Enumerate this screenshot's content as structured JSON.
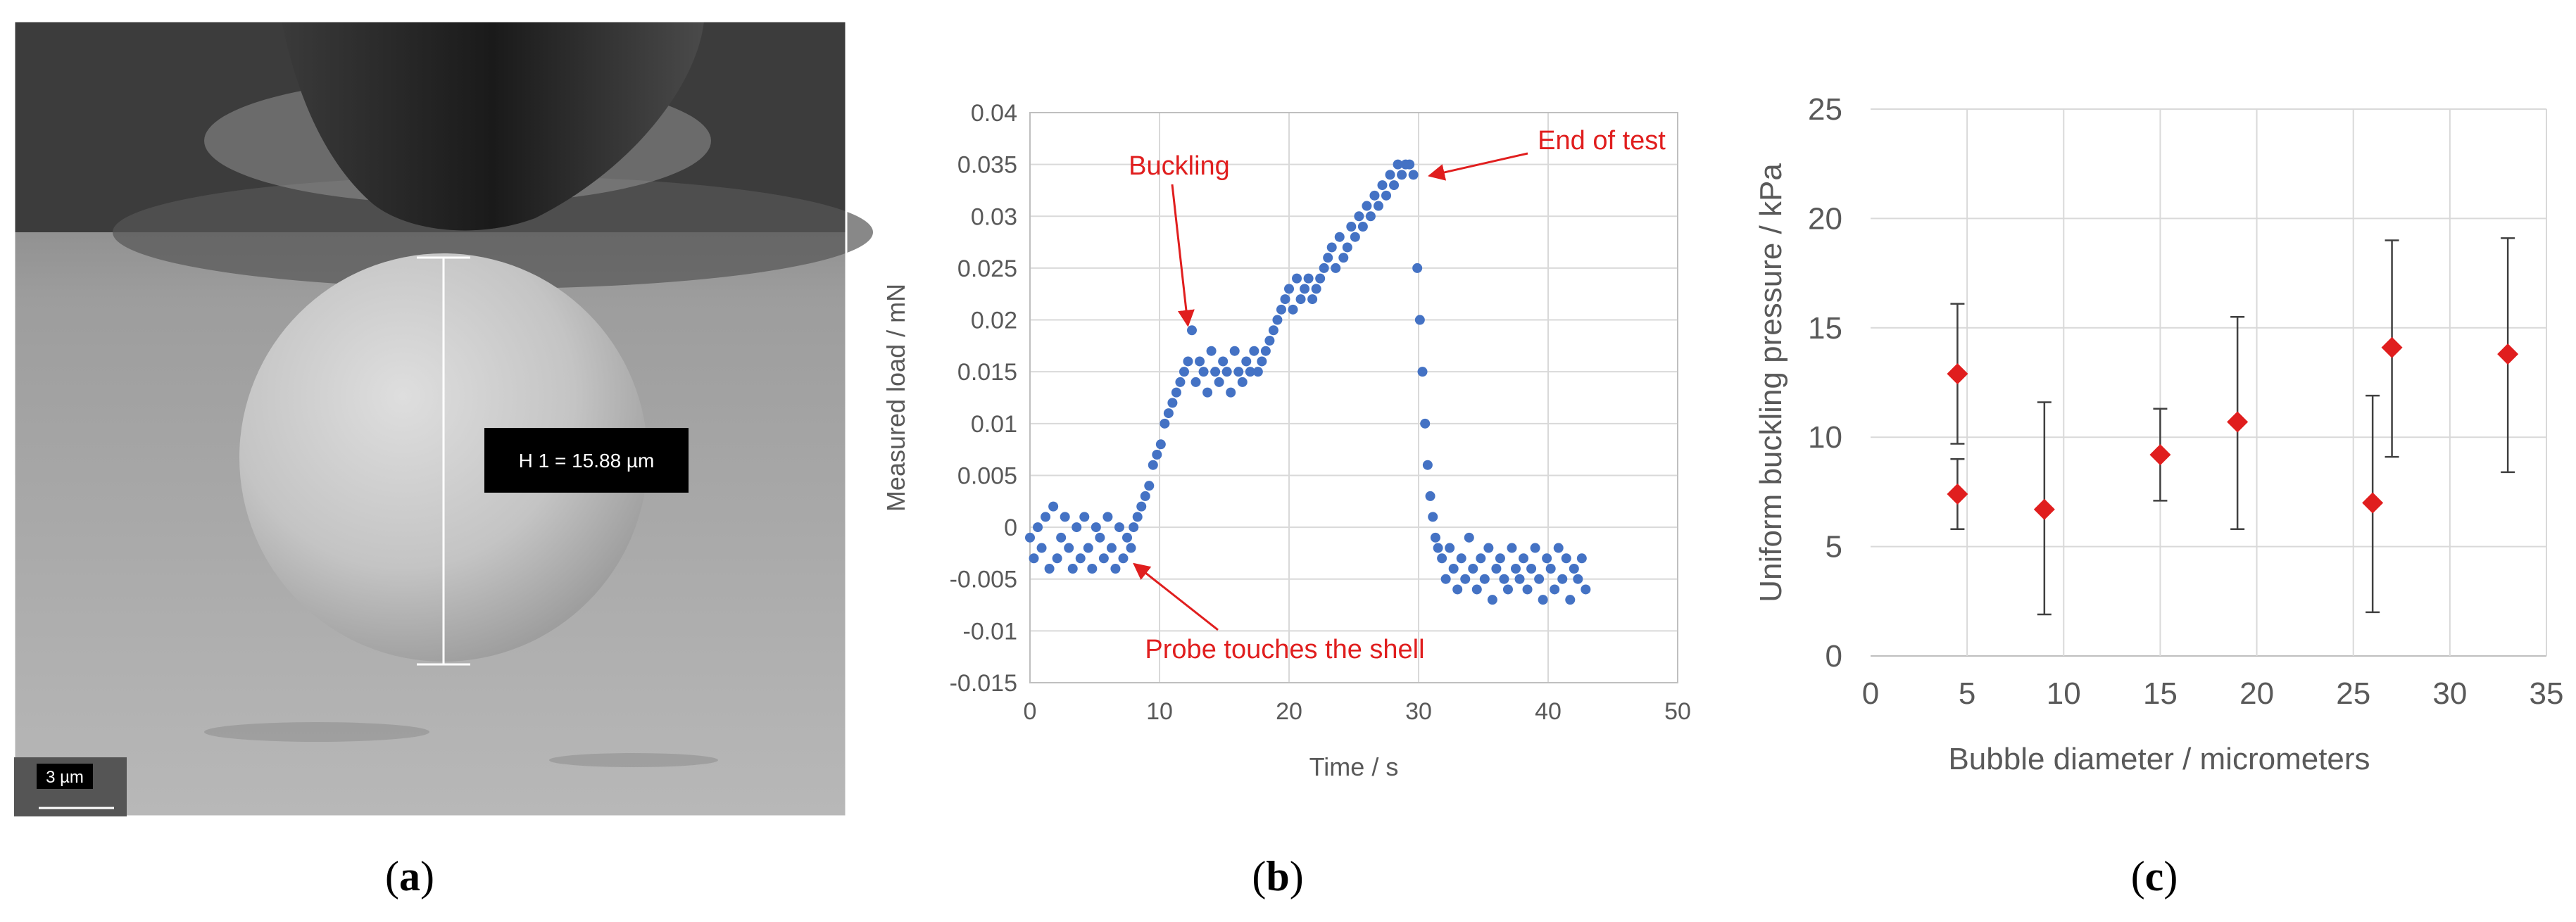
{
  "panels": {
    "a": {
      "label_open": "(",
      "label_letter": "a",
      "label_close": ")",
      "measurement_label": "H 1 = 15.88 µm",
      "scale_label": "3 µm"
    },
    "b": {
      "label_open": "(",
      "label_letter": "b",
      "label_close": ")"
    },
    "c": {
      "label_open": "(",
      "label_letter": "c",
      "label_close": ")"
    }
  },
  "chart_data": [
    {
      "id": "b",
      "type": "scatter",
      "xlabel": "Time / s",
      "ylabel": "Measured load / mN",
      "xlim": [
        0,
        50
      ],
      "ylim": [
        -0.015,
        0.04
      ],
      "xticks": [
        0,
        10,
        20,
        30,
        40,
        50
      ],
      "yticks": [
        -0.015,
        -0.01,
        -0.005,
        0,
        0.005,
        0.01,
        0.015,
        0.02,
        0.025,
        0.03,
        0.035,
        0.04
      ],
      "ytick_labels": [
        "-0.015",
        "-0.01",
        "-0.005",
        "0",
        "0.005",
        "0.01",
        "0.015",
        "0.02",
        "0.025",
        "0.03",
        "0.035",
        "0.04"
      ],
      "grid": true,
      "marker_color": "#4472c4",
      "series": [
        {
          "points": [
            [
              0,
              -0.001
            ],
            [
              0.3,
              -0.003
            ],
            [
              0.6,
              0
            ],
            [
              0.9,
              -0.002
            ],
            [
              1.2,
              0.001
            ],
            [
              1.5,
              -0.004
            ],
            [
              1.8,
              0.002
            ],
            [
              2.1,
              -0.003
            ],
            [
              2.4,
              -0.001
            ],
            [
              2.7,
              0.001
            ],
            [
              3.0,
              -0.002
            ],
            [
              3.3,
              -0.004
            ],
            [
              3.6,
              0
            ],
            [
              3.9,
              -0.003
            ],
            [
              4.2,
              0.001
            ],
            [
              4.5,
              -0.002
            ],
            [
              4.8,
              -0.004
            ],
            [
              5.1,
              0
            ],
            [
              5.4,
              -0.001
            ],
            [
              5.7,
              -0.003
            ],
            [
              6.0,
              0.001
            ],
            [
              6.3,
              -0.002
            ],
            [
              6.6,
              -0.004
            ],
            [
              6.9,
              0
            ],
            [
              7.2,
              -0.003
            ],
            [
              7.5,
              -0.001
            ],
            [
              7.8,
              -0.002
            ],
            [
              8.0,
              0
            ],
            [
              8.3,
              0.001
            ],
            [
              8.6,
              0.002
            ],
            [
              8.9,
              0.003
            ],
            [
              9.2,
              0.004
            ],
            [
              9.5,
              0.006
            ],
            [
              9.8,
              0.007
            ],
            [
              10.1,
              0.008
            ],
            [
              10.4,
              0.01
            ],
            [
              10.7,
              0.011
            ],
            [
              11.0,
              0.012
            ],
            [
              11.3,
              0.013
            ],
            [
              11.6,
              0.014
            ],
            [
              11.9,
              0.015
            ],
            [
              12.2,
              0.016
            ],
            [
              12.5,
              0.019
            ],
            [
              12.8,
              0.014
            ],
            [
              13.1,
              0.016
            ],
            [
              13.4,
              0.015
            ],
            [
              13.7,
              0.013
            ],
            [
              14.0,
              0.017
            ],
            [
              14.3,
              0.015
            ],
            [
              14.6,
              0.014
            ],
            [
              14.9,
              0.016
            ],
            [
              15.2,
              0.015
            ],
            [
              15.5,
              0.013
            ],
            [
              15.8,
              0.017
            ],
            [
              16.1,
              0.015
            ],
            [
              16.4,
              0.014
            ],
            [
              16.7,
              0.016
            ],
            [
              17.0,
              0.015
            ],
            [
              17.3,
              0.017
            ],
            [
              17.6,
              0.015
            ],
            [
              17.9,
              0.016
            ],
            [
              18.2,
              0.017
            ],
            [
              18.5,
              0.018
            ],
            [
              18.8,
              0.019
            ],
            [
              19.1,
              0.02
            ],
            [
              19.4,
              0.021
            ],
            [
              19.7,
              0.022
            ],
            [
              20.0,
              0.023
            ],
            [
              20.3,
              0.021
            ],
            [
              20.6,
              0.024
            ],
            [
              20.9,
              0.022
            ],
            [
              21.2,
              0.023
            ],
            [
              21.5,
              0.024
            ],
            [
              21.8,
              0.022
            ],
            [
              22.1,
              0.023
            ],
            [
              22.4,
              0.024
            ],
            [
              22.7,
              0.025
            ],
            [
              23.0,
              0.026
            ],
            [
              23.3,
              0.027
            ],
            [
              23.6,
              0.025
            ],
            [
              23.9,
              0.028
            ],
            [
              24.2,
              0.026
            ],
            [
              24.5,
              0.027
            ],
            [
              24.8,
              0.029
            ],
            [
              25.1,
              0.028
            ],
            [
              25.4,
              0.03
            ],
            [
              25.7,
              0.029
            ],
            [
              26.0,
              0.031
            ],
            [
              26.3,
              0.03
            ],
            [
              26.6,
              0.032
            ],
            [
              26.9,
              0.031
            ],
            [
              27.2,
              0.033
            ],
            [
              27.5,
              0.032
            ],
            [
              27.8,
              0.034
            ],
            [
              28.1,
              0.033
            ],
            [
              28.4,
              0.035
            ],
            [
              28.7,
              0.034
            ],
            [
              29.0,
              0.035
            ],
            [
              29.3,
              0.035
            ],
            [
              29.6,
              0.034
            ],
            [
              29.9,
              0.025
            ],
            [
              30.1,
              0.02
            ],
            [
              30.3,
              0.015
            ],
            [
              30.5,
              0.01
            ],
            [
              30.7,
              0.006
            ],
            [
              30.9,
              0.003
            ],
            [
              31.1,
              0.001
            ],
            [
              31.3,
              -0.001
            ],
            [
              31.5,
              -0.002
            ],
            [
              31.8,
              -0.003
            ],
            [
              32.1,
              -0.005
            ],
            [
              32.4,
              -0.002
            ],
            [
              32.7,
              -0.004
            ],
            [
              33.0,
              -0.006
            ],
            [
              33.3,
              -0.003
            ],
            [
              33.6,
              -0.005
            ],
            [
              33.9,
              -0.001
            ],
            [
              34.2,
              -0.004
            ],
            [
              34.5,
              -0.006
            ],
            [
              34.8,
              -0.003
            ],
            [
              35.1,
              -0.005
            ],
            [
              35.4,
              -0.002
            ],
            [
              35.7,
              -0.007
            ],
            [
              36.0,
              -0.004
            ],
            [
              36.3,
              -0.003
            ],
            [
              36.6,
              -0.005
            ],
            [
              36.9,
              -0.006
            ],
            [
              37.2,
              -0.002
            ],
            [
              37.5,
              -0.004
            ],
            [
              37.8,
              -0.005
            ],
            [
              38.1,
              -0.003
            ],
            [
              38.4,
              -0.006
            ],
            [
              38.7,
              -0.004
            ],
            [
              39.0,
              -0.002
            ],
            [
              39.3,
              -0.005
            ],
            [
              39.6,
              -0.007
            ],
            [
              39.9,
              -0.003
            ],
            [
              40.2,
              -0.004
            ],
            [
              40.5,
              -0.006
            ],
            [
              40.8,
              -0.002
            ],
            [
              41.1,
              -0.005
            ],
            [
              41.4,
              -0.003
            ],
            [
              41.7,
              -0.007
            ],
            [
              42.0,
              -0.004
            ],
            [
              42.3,
              -0.005
            ],
            [
              42.6,
              -0.003
            ],
            [
              42.9,
              -0.006
            ]
          ]
        }
      ],
      "annotations": [
        {
          "text": "Buckling",
          "x": 12.3,
          "y": 0.0188
        },
        {
          "text": "End of test",
          "x": 30.4,
          "y": 0.0335
        },
        {
          "text": "Probe touches the shell",
          "x": 7.5,
          "y": -0.003
        }
      ]
    },
    {
      "id": "c",
      "type": "scatter",
      "xlabel": "Bubble diameter / micrometers",
      "ylabel": "Uniform buckling pressure / kPa",
      "xlim": [
        0,
        35
      ],
      "ylim": [
        0,
        25
      ],
      "xticks": [
        0,
        5,
        10,
        15,
        20,
        25,
        30,
        35
      ],
      "yticks": [
        0,
        5,
        10,
        15,
        20,
        25
      ],
      "grid": true,
      "marker_color": "#e01e1e",
      "points": [
        {
          "x": 4.5,
          "y": 12.9,
          "low": 9.7,
          "high": 16.1
        },
        {
          "x": 4.5,
          "y": 7.4,
          "low": 5.8,
          "high": 9.0
        },
        {
          "x": 9.0,
          "y": 6.7,
          "low": 1.9,
          "high": 11.6
        },
        {
          "x": 15.0,
          "y": 9.2,
          "low": 7.1,
          "high": 11.3
        },
        {
          "x": 19.0,
          "y": 10.7,
          "low": 5.8,
          "high": 15.5
        },
        {
          "x": 26.0,
          "y": 7.0,
          "low": 2.0,
          "high": 11.9
        },
        {
          "x": 27.0,
          "y": 14.1,
          "low": 9.1,
          "high": 19.0
        },
        {
          "x": 33.0,
          "y": 13.8,
          "low": 8.4,
          "high": 19.1
        }
      ]
    }
  ]
}
